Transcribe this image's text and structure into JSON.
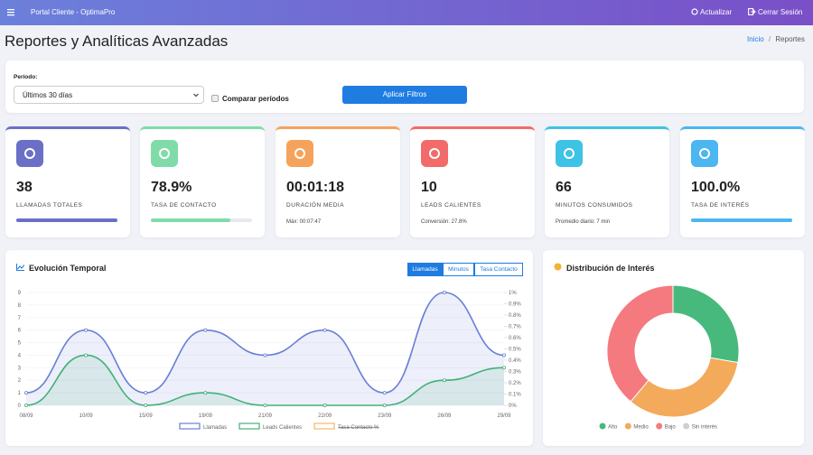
{
  "navbar": {
    "brand": "Portal Cliente - OptimaPro",
    "actions": [
      "Actualizar",
      "Cerrar Sesión"
    ]
  },
  "header": {
    "title": "Reportes y Analíticas Avanzadas",
    "breadcrumb": [
      "Inicio",
      "Reportes"
    ],
    "separator": "/"
  },
  "filters": {
    "period_label": "Período:",
    "period_value": "Últimos 30 días",
    "compare_label": "Comparar períodos",
    "apply_button": "Aplicar Filtros"
  },
  "kpis": [
    {
      "value": 38,
      "label": "LLAMADAS TOTALES",
      "progress": 100,
      "color": "#6c6fc6"
    },
    {
      "value": "78.9%",
      "label": "TASA DE CONTACTO",
      "progress": 78.9,
      "color": "#7fdca8"
    },
    {
      "value": "00:01:18",
      "label": "DURACIÓN MEDIA",
      "note": "Máx: 00:07:47",
      "color": "#f5a35c"
    },
    {
      "value": 10,
      "label": "LEADS CALIENTES",
      "note": "Conversión: 27.8%",
      "color": "#f26a6a"
    },
    {
      "value": 66,
      "label": "MINUTOS CONSUMIDOS",
      "note": "Promedio diario: 7 min",
      "color": "#3ec3e6"
    },
    {
      "value": "100.0%",
      "label": "TASA DE INTERÉS",
      "progress": 100,
      "color": "#4bb6f1"
    }
  ],
  "line_chart": {
    "type": "line",
    "title": "Evolución Temporal",
    "tabs": [
      "Llamadas",
      "Minutos",
      "Tasa Contacto"
    ],
    "categories": [
      "08/09",
      "10/09",
      "15/09",
      "19/09",
      "21/09",
      "22/09",
      "23/09",
      "26/09",
      "29/09"
    ],
    "series": [
      {
        "name": "Llamadas",
        "color": "#6a7fd6",
        "values": [
          1,
          6,
          1,
          6,
          4,
          6,
          1,
          9,
          4
        ]
      },
      {
        "name": "Leads Calientes",
        "color": "#44b078",
        "values": [
          0,
          4,
          0,
          1,
          0,
          0,
          0,
          2,
          3
        ]
      }
    ],
    "hidden_series": [
      {
        "name": "Tasa Contacto %",
        "color": "#f2b766"
      }
    ],
    "ylim": [
      0,
      9
    ],
    "yticks": [
      0,
      1,
      2,
      3,
      4,
      5,
      6,
      7,
      8,
      9
    ],
    "y2lim": [
      0,
      1
    ],
    "y2ticks": [
      {
        "value": 0,
        "label": "0%"
      },
      {
        "value": 0.1,
        "label": "0.1%"
      },
      {
        "value": 0.2,
        "label": "0.2%"
      },
      {
        "value": 0.3,
        "label": "0.3%"
      },
      {
        "value": 0.4,
        "label": "0.4%"
      },
      {
        "value": 0.5,
        "label": "0.5%"
      },
      {
        "value": 0.6,
        "label": "0.6%"
      },
      {
        "value": 0.7,
        "label": "0.7%"
      },
      {
        "value": 0.8,
        "label": "0.8%"
      },
      {
        "value": 0.9,
        "label": "0.9%"
      },
      {
        "value": 1,
        "label": "1%"
      }
    ],
    "grid": true
  },
  "donut_chart": {
    "type": "doughnut",
    "title": "Distribución de Interés",
    "categories": [
      "Alto",
      "Medio",
      "Bajo",
      "Sin interés"
    ],
    "values": [
      10,
      12,
      14,
      0
    ],
    "colors": [
      "#48b97c",
      "#f3aa5a",
      "#f47a7f",
      "#cfcfcf"
    ]
  }
}
